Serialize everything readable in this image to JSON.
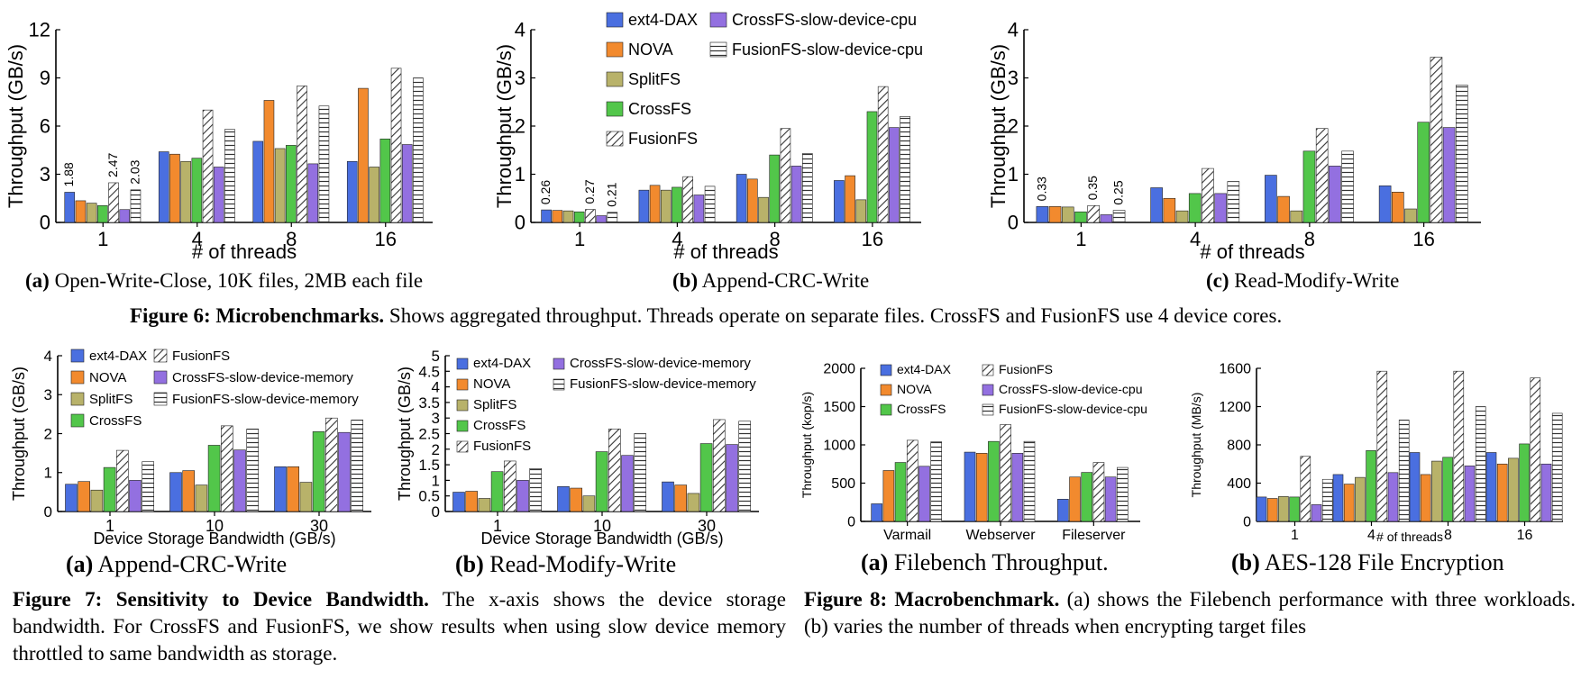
{
  "series_colors": {
    "ext4-DAX": "#4a6fe0",
    "NOVA": "#f28a2e",
    "SplitFS": "#b8b26a",
    "CrossFS": "#52c64a",
    "FusionFS": "hatch-diag",
    "CrossFS-slow-device-cpu": "#9370e0",
    "CrossFS-slow-device-memory": "#9370e0",
    "FusionFS-slow-device-cpu": "hatch-horiz",
    "FusionFS-slow-device-memory": "hatch-horiz"
  },
  "figure6": {
    "caption_bold": "Figure 6: Microbenchmarks.",
    "caption_text": " Shows aggregated throughput. Threads operate on separate files. CrossFS and FusionFS use 4 device cores."
  },
  "figure7": {
    "caption_bold": "Figure 7: Sensitivity to Device Bandwidth.",
    "caption_text": " The x-axis shows the device storage bandwidth. For CrossFS and FusionFS, we show results when using slow device memory throttled to same bandwidth as storage."
  },
  "figure8": {
    "caption_bold": "Figure 8: Macrobenchmark.",
    "caption_text": " (a) shows the Filebench performance with three workloads. (b) varies the number of threads when encrypting target files"
  },
  "chart_data": [
    {
      "id": "f6a",
      "type": "bar",
      "caption_letter": "(a)",
      "caption": "Open-Write-Close, 10K files, 2MB each file",
      "ylabel": "Throughput (GB/s)",
      "xlabel": "# of threads",
      "ylim": [
        0,
        12
      ],
      "yticks": [
        "0",
        "3",
        "6",
        "9",
        "12"
      ],
      "categories": [
        "1",
        "4",
        "8",
        "16"
      ],
      "series": [
        {
          "name": "ext4-DAX",
          "values": [
            1.88,
            4.4,
            5.05,
            3.8
          ]
        },
        {
          "name": "NOVA",
          "values": [
            1.35,
            4.25,
            7.6,
            8.35
          ]
        },
        {
          "name": "SplitFS",
          "values": [
            1.2,
            3.8,
            4.6,
            3.45
          ]
        },
        {
          "name": "CrossFS",
          "values": [
            1.05,
            4.0,
            4.8,
            5.2
          ]
        },
        {
          "name": "FusionFS",
          "values": [
            2.47,
            7.0,
            8.5,
            9.6
          ]
        },
        {
          "name": "CrossFS-slow-device-cpu",
          "values": [
            0.8,
            3.45,
            3.65,
            4.85
          ]
        },
        {
          "name": "FusionFS-slow-device-cpu",
          "values": [
            2.03,
            5.8,
            7.25,
            9.0
          ]
        }
      ],
      "annotations": [
        {
          "category": 0,
          "series": 0,
          "text": "1.88"
        },
        {
          "category": 0,
          "series": 4,
          "text": "2.47"
        },
        {
          "category": 0,
          "series": 6,
          "text": "2.03"
        }
      ],
      "legend": []
    },
    {
      "id": "f6b",
      "type": "bar",
      "caption_letter": "(b)",
      "caption": "Append-CRC-Write",
      "ylabel": "Throughput (GB/s)",
      "xlabel": "# of threads",
      "ylim": [
        0,
        4
      ],
      "yticks": [
        "0",
        "1",
        "2",
        "3",
        "4"
      ],
      "categories": [
        "1",
        "4",
        "8",
        "16"
      ],
      "series": [
        {
          "name": "ext4-DAX",
          "values": [
            0.26,
            0.67,
            1.0,
            0.87
          ]
        },
        {
          "name": "NOVA",
          "values": [
            0.25,
            0.77,
            0.9,
            0.97
          ]
        },
        {
          "name": "SplitFS",
          "values": [
            0.24,
            0.67,
            0.52,
            0.47
          ]
        },
        {
          "name": "CrossFS",
          "values": [
            0.22,
            0.73,
            1.4,
            2.3
          ]
        },
        {
          "name": "FusionFS",
          "values": [
            0.27,
            0.95,
            1.95,
            2.82
          ]
        },
        {
          "name": "CrossFS-slow-device-cpu",
          "values": [
            0.14,
            0.57,
            1.17,
            1.97
          ]
        },
        {
          "name": "FusionFS-slow-device-cpu",
          "values": [
            0.21,
            0.75,
            1.43,
            2.2
          ]
        }
      ],
      "annotations": [
        {
          "category": 0,
          "series": 0,
          "text": "0.26"
        },
        {
          "category": 0,
          "series": 4,
          "text": "0.27"
        },
        {
          "category": 0,
          "series": 6,
          "text": "0.21"
        }
      ],
      "legend": [
        "ext4-DAX",
        "NOVA",
        "SplitFS",
        "CrossFS",
        "FusionFS",
        "CrossFS-slow-device-cpu",
        "FusionFS-slow-device-cpu"
      ]
    },
    {
      "id": "f6c",
      "type": "bar",
      "caption_letter": "(c)",
      "caption": "Read-Modify-Write",
      "ylabel": "Throughput (GB/s)",
      "xlabel": "# of threads",
      "ylim": [
        0,
        4
      ],
      "yticks": [
        "0",
        "1",
        "2",
        "3",
        "4"
      ],
      "categories": [
        "1",
        "4",
        "8",
        "16"
      ],
      "series": [
        {
          "name": "ext4-DAX",
          "values": [
            0.33,
            0.72,
            0.98,
            0.76
          ]
        },
        {
          "name": "NOVA",
          "values": [
            0.33,
            0.5,
            0.54,
            0.63
          ]
        },
        {
          "name": "SplitFS",
          "values": [
            0.32,
            0.24,
            0.24,
            0.28
          ]
        },
        {
          "name": "CrossFS",
          "values": [
            0.22,
            0.6,
            1.48,
            2.08
          ]
        },
        {
          "name": "FusionFS",
          "values": [
            0.35,
            1.12,
            1.95,
            3.43
          ]
        },
        {
          "name": "CrossFS-slow-device-cpu",
          "values": [
            0.16,
            0.6,
            1.17,
            1.97
          ]
        },
        {
          "name": "FusionFS-slow-device-cpu",
          "values": [
            0.25,
            0.85,
            1.48,
            2.85
          ]
        }
      ],
      "annotations": [
        {
          "category": 0,
          "series": 0,
          "text": "0.33"
        },
        {
          "category": 0,
          "series": 4,
          "text": "0.35"
        },
        {
          "category": 0,
          "series": 6,
          "text": "0.25"
        }
      ],
      "legend": []
    },
    {
      "id": "f7a",
      "type": "bar",
      "caption_letter": "(a)",
      "caption": "Append-CRC-Write",
      "ylabel": "Throughput (GB/s)",
      "xlabel": "Device Storage Bandwidth (GB/s)",
      "ylim": [
        0,
        4
      ],
      "yticks": [
        "0",
        "1",
        "2",
        "3",
        "4"
      ],
      "categories": [
        "1",
        "10",
        "30"
      ],
      "series": [
        {
          "name": "ext4-DAX",
          "values": [
            0.7,
            1.0,
            1.15
          ]
        },
        {
          "name": "NOVA",
          "values": [
            0.77,
            1.05,
            1.15
          ]
        },
        {
          "name": "SplitFS",
          "values": [
            0.55,
            0.68,
            0.75
          ]
        },
        {
          "name": "CrossFS",
          "values": [
            1.13,
            1.7,
            2.05
          ]
        },
        {
          "name": "FusionFS",
          "values": [
            1.57,
            2.2,
            2.4
          ]
        },
        {
          "name": "CrossFS-slow-device-memory",
          "values": [
            0.8,
            1.58,
            2.03
          ]
        },
        {
          "name": "FusionFS-slow-device-memory",
          "values": [
            1.28,
            2.12,
            2.35
          ]
        }
      ],
      "annotations": [],
      "legend": [
        "ext4-DAX",
        "NOVA",
        "SplitFS",
        "CrossFS",
        "FusionFS",
        "CrossFS-slow-device-memory",
        "FusionFS-slow-device-memory"
      ]
    },
    {
      "id": "f7b",
      "type": "bar",
      "caption_letter": "(b)",
      "caption": "Read-Modify-Write",
      "ylabel": "Throughput (GB/s)",
      "xlabel": "Device Storage Bandwidth (GB/s)",
      "ylim": [
        0,
        5
      ],
      "yticks": [
        "0",
        "0.5",
        "1",
        "1.5",
        "2",
        "2.5",
        "3",
        "3.5",
        "4",
        "4.5",
        "5"
      ],
      "categories": [
        "1",
        "10",
        "30"
      ],
      "series": [
        {
          "name": "ext4-DAX",
          "values": [
            0.62,
            0.8,
            0.95
          ]
        },
        {
          "name": "NOVA",
          "values": [
            0.65,
            0.75,
            0.85
          ]
        },
        {
          "name": "SplitFS",
          "values": [
            0.42,
            0.5,
            0.58
          ]
        },
        {
          "name": "CrossFS",
          "values": [
            1.28,
            1.92,
            2.18
          ]
        },
        {
          "name": "FusionFS",
          "values": [
            1.62,
            2.65,
            2.95
          ]
        },
        {
          "name": "CrossFS-slow-device-memory",
          "values": [
            1.0,
            1.8,
            2.15
          ]
        },
        {
          "name": "FusionFS-slow-device-memory",
          "values": [
            1.38,
            2.5,
            2.9
          ]
        }
      ],
      "annotations": [],
      "legend": [
        "ext4-DAX",
        "NOVA",
        "SplitFS",
        "CrossFS",
        "FusionFS",
        "CrossFS-slow-device-memory",
        "FusionFS-slow-device-memory"
      ]
    },
    {
      "id": "f8a",
      "type": "bar",
      "caption_letter": "(a)",
      "caption": "Filebench Throughput.",
      "ylabel": "Throughput (kop/s)",
      "xlabel": "",
      "ylim": [
        0,
        2000
      ],
      "yticks": [
        "0",
        "500",
        "1000",
        "1500",
        "2000"
      ],
      "categories": [
        "Varmail",
        "Webserver",
        "Fileserver"
      ],
      "series": [
        {
          "name": "ext4-DAX",
          "values": [
            230,
            905,
            290
          ]
        },
        {
          "name": "NOVA",
          "values": [
            665,
            890,
            580
          ]
        },
        {
          "name": "CrossFS",
          "values": [
            770,
            1045,
            640
          ]
        },
        {
          "name": "FusionFS",
          "values": [
            1060,
            1265,
            770
          ]
        },
        {
          "name": "CrossFS-slow-device-cpu",
          "values": [
            720,
            890,
            580
          ]
        },
        {
          "name": "FusionFS-slow-device-cpu",
          "values": [
            1040,
            1045,
            705
          ]
        }
      ],
      "annotations": [],
      "legend": [
        "ext4-DAX",
        "NOVA",
        "CrossFS",
        "FusionFS",
        "CrossFS-slow-device-cpu",
        "FusionFS-slow-device-cpu"
      ]
    },
    {
      "id": "f8b",
      "type": "bar",
      "caption_letter": "(b)",
      "caption": "AES-128 File Encryption",
      "ylabel": "Throughput (MB/s)",
      "xlabel": "# of threads",
      "ylim": [
        0,
        1600
      ],
      "yticks": [
        "0",
        "400",
        "800",
        "1200",
        "1600"
      ],
      "categories": [
        "1",
        "4",
        "8",
        "16"
      ],
      "series": [
        {
          "name": "ext4-DAX",
          "values": [
            255,
            490,
            720,
            720
          ]
        },
        {
          "name": "NOVA",
          "values": [
            240,
            390,
            490,
            600
          ]
        },
        {
          "name": "SplitFS",
          "values": [
            260,
            460,
            630,
            660
          ]
        },
        {
          "name": "CrossFS",
          "values": [
            255,
            740,
            670,
            810
          ]
        },
        {
          "name": "FusionFS",
          "values": [
            680,
            1570,
            1570,
            1500
          ]
        },
        {
          "name": "CrossFS-slow-device-cpu",
          "values": [
            175,
            510,
            580,
            600
          ]
        },
        {
          "name": "FusionFS-slow-device-cpu",
          "values": [
            440,
            1060,
            1200,
            1130
          ]
        }
      ],
      "annotations": [],
      "legend": []
    }
  ]
}
